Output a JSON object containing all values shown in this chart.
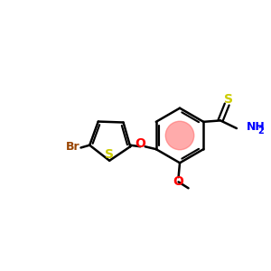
{
  "bg_color": "#ffffff",
  "bond_color": "#000000",
  "bond_width": 1.8,
  "highlight_color": "#ff6666",
  "s_color": "#cccc00",
  "br_color": "#994400",
  "o_color": "#ff0000",
  "n_color": "#0000ff",
  "figsize": [
    3.0,
    3.0
  ],
  "dpi": 100,
  "xlim": [
    0,
    10
  ],
  "ylim": [
    1,
    9
  ]
}
